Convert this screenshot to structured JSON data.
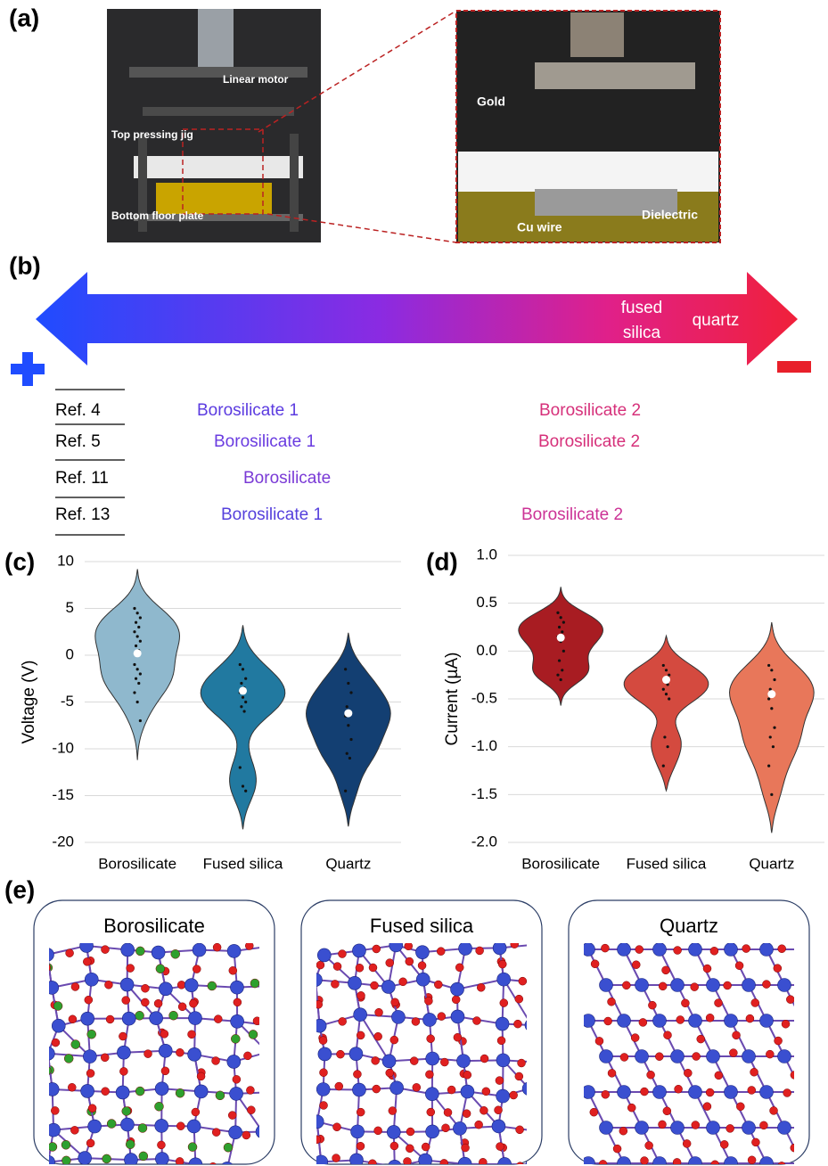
{
  "panel_a": {
    "label": "(a)",
    "photo_labels": [
      "Linear motor",
      "Top pressing jig",
      "Bottom floor plate"
    ],
    "inset_labels": [
      "Gold",
      "Dielectric",
      "Cu wire"
    ]
  },
  "panel_b": {
    "label": "(b)",
    "fused_silica": [
      "fused",
      "silica"
    ],
    "quartz": "quartz"
  },
  "table": {
    "rows": [
      [
        "Ref. 4",
        "Borosilicate 1",
        "Borosilicate 2"
      ],
      [
        "Ref. 5",
        "Borosilicate 1",
        "Borosilicate 2"
      ],
      [
        "Ref. 11",
        "Borosilicate"
      ],
      [
        "Ref. 13",
        "Borosilicate 1",
        "Borosilicate 2"
      ]
    ]
  },
  "chart_data": [
    {
      "type": "violin",
      "panel_label": "(c)",
      "y_label": "Voltage (V)",
      "categories": [
        "Borosilicate",
        "Fused silica",
        "Quartz"
      ],
      "colors": [
        "#8fb8cd",
        "#2179a0",
        "#133f72"
      ],
      "values": [
        0.2,
        -3.8,
        -6.2
      ],
      "ranges": [
        [
          -11.2,
          9.2
        ],
        [
          -18.6,
          3.2
        ],
        [
          -18.3,
          2.4
        ]
      ],
      "points": [
        [
          5,
          4.5,
          4,
          3.5,
          3,
          2.5,
          2,
          1.5,
          1,
          0.5,
          -1,
          -1.5,
          -2,
          -2.5,
          -3,
          -4,
          -5,
          -7
        ],
        [
          -1,
          -1.5,
          -2.5,
          -3,
          -3.5,
          -4,
          -4.5,
          -5,
          -5.5,
          -6,
          -12,
          -14,
          -14.5
        ],
        [
          -1.5,
          -3,
          -4,
          -5.5,
          -6,
          -6.5,
          -7.5,
          -9,
          -10.5,
          -11,
          -14.5
        ]
      ],
      "ylim": [
        -20,
        10
      ],
      "yticks": [
        -20,
        -15,
        -10,
        -5,
        0,
        5,
        10
      ],
      "grid": true
    },
    {
      "type": "violin",
      "panel_label": "(d)",
      "y_label": "Current (µA)",
      "categories": [
        "Borosilicate",
        "Fused silica",
        "Quartz"
      ],
      "colors": [
        "#a81c22",
        "#d44a3f",
        "#e8775a"
      ],
      "values": [
        0.14,
        -0.3,
        -0.45
      ],
      "ranges": [
        [
          -0.57,
          0.67
        ],
        [
          -1.46,
          0.16
        ],
        [
          -1.9,
          0.3
        ]
      ],
      "points": [
        [
          0.4,
          0.35,
          0.3,
          0.25,
          0.2,
          0.15,
          0.1,
          0,
          -0.1,
          -0.2,
          -0.25,
          -0.3
        ],
        [
          -0.15,
          -0.2,
          -0.25,
          -0.3,
          -0.35,
          -0.4,
          -0.45,
          -0.5,
          -0.9,
          -1.0,
          -1.2
        ],
        [
          -0.15,
          -0.2,
          -0.3,
          -0.4,
          -0.45,
          -0.5,
          -0.6,
          -0.8,
          -0.9,
          -1.0,
          -1.2,
          -1.5
        ]
      ],
      "ylim": [
        -2,
        1
      ],
      "yticks": [
        {
          "value": -2,
          "label": "-2.0"
        },
        -1.5,
        {
          "value": -1,
          "label": "-1.0"
        },
        -0.5,
        {
          "value": 0,
          "label": "0.0"
        },
        0.5,
        {
          "value": 1,
          "label": "1.0"
        }
      ],
      "grid": true
    }
  ],
  "panel_e": {
    "label": "(e)",
    "titles": [
      "Borosilicate",
      "Fused silica",
      "Quartz"
    ]
  }
}
